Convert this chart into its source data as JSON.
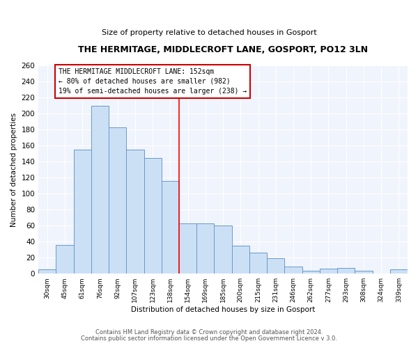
{
  "title1": "THE HERMITAGE, MIDDLECROFT LANE, GOSPORT, PO12 3LN",
  "title2": "Size of property relative to detached houses in Gosport",
  "xlabel": "Distribution of detached houses by size in Gosport",
  "ylabel": "Number of detached properties",
  "categories": [
    "30sqm",
    "45sqm",
    "61sqm",
    "76sqm",
    "92sqm",
    "107sqm",
    "123sqm",
    "138sqm",
    "154sqm",
    "169sqm",
    "185sqm",
    "200sqm",
    "215sqm",
    "231sqm",
    "246sqm",
    "262sqm",
    "277sqm",
    "293sqm",
    "308sqm",
    "324sqm",
    "339sqm"
  ],
  "values": [
    5,
    36,
    155,
    210,
    183,
    155,
    145,
    116,
    63,
    63,
    60,
    35,
    26,
    19,
    9,
    4,
    6,
    7,
    4,
    0,
    5
  ],
  "bar_color": "#cce0f5",
  "bar_edge_color": "#6699cc",
  "red_line_index": 8,
  "annotation_line1": "THE HERMITAGE MIDDLECROFT LANE: 152sqm",
  "annotation_line2": "← 80% of detached houses are smaller (982)",
  "annotation_line3": "19% of semi-detached houses are larger (238) →",
  "annotation_box_facecolor": "#ffffff",
  "annotation_box_edgecolor": "#cc0000",
  "footer1": "Contains HM Land Registry data © Crown copyright and database right 2024.",
  "footer2": "Contains public sector information licensed under the Open Government Licence v 3.0.",
  "fig_facecolor": "#ffffff",
  "axes_facecolor": "#f0f4fc",
  "ylim": [
    0,
    260
  ],
  "yticks": [
    0,
    20,
    40,
    60,
    80,
    100,
    120,
    140,
    160,
    180,
    200,
    220,
    240,
    260
  ]
}
